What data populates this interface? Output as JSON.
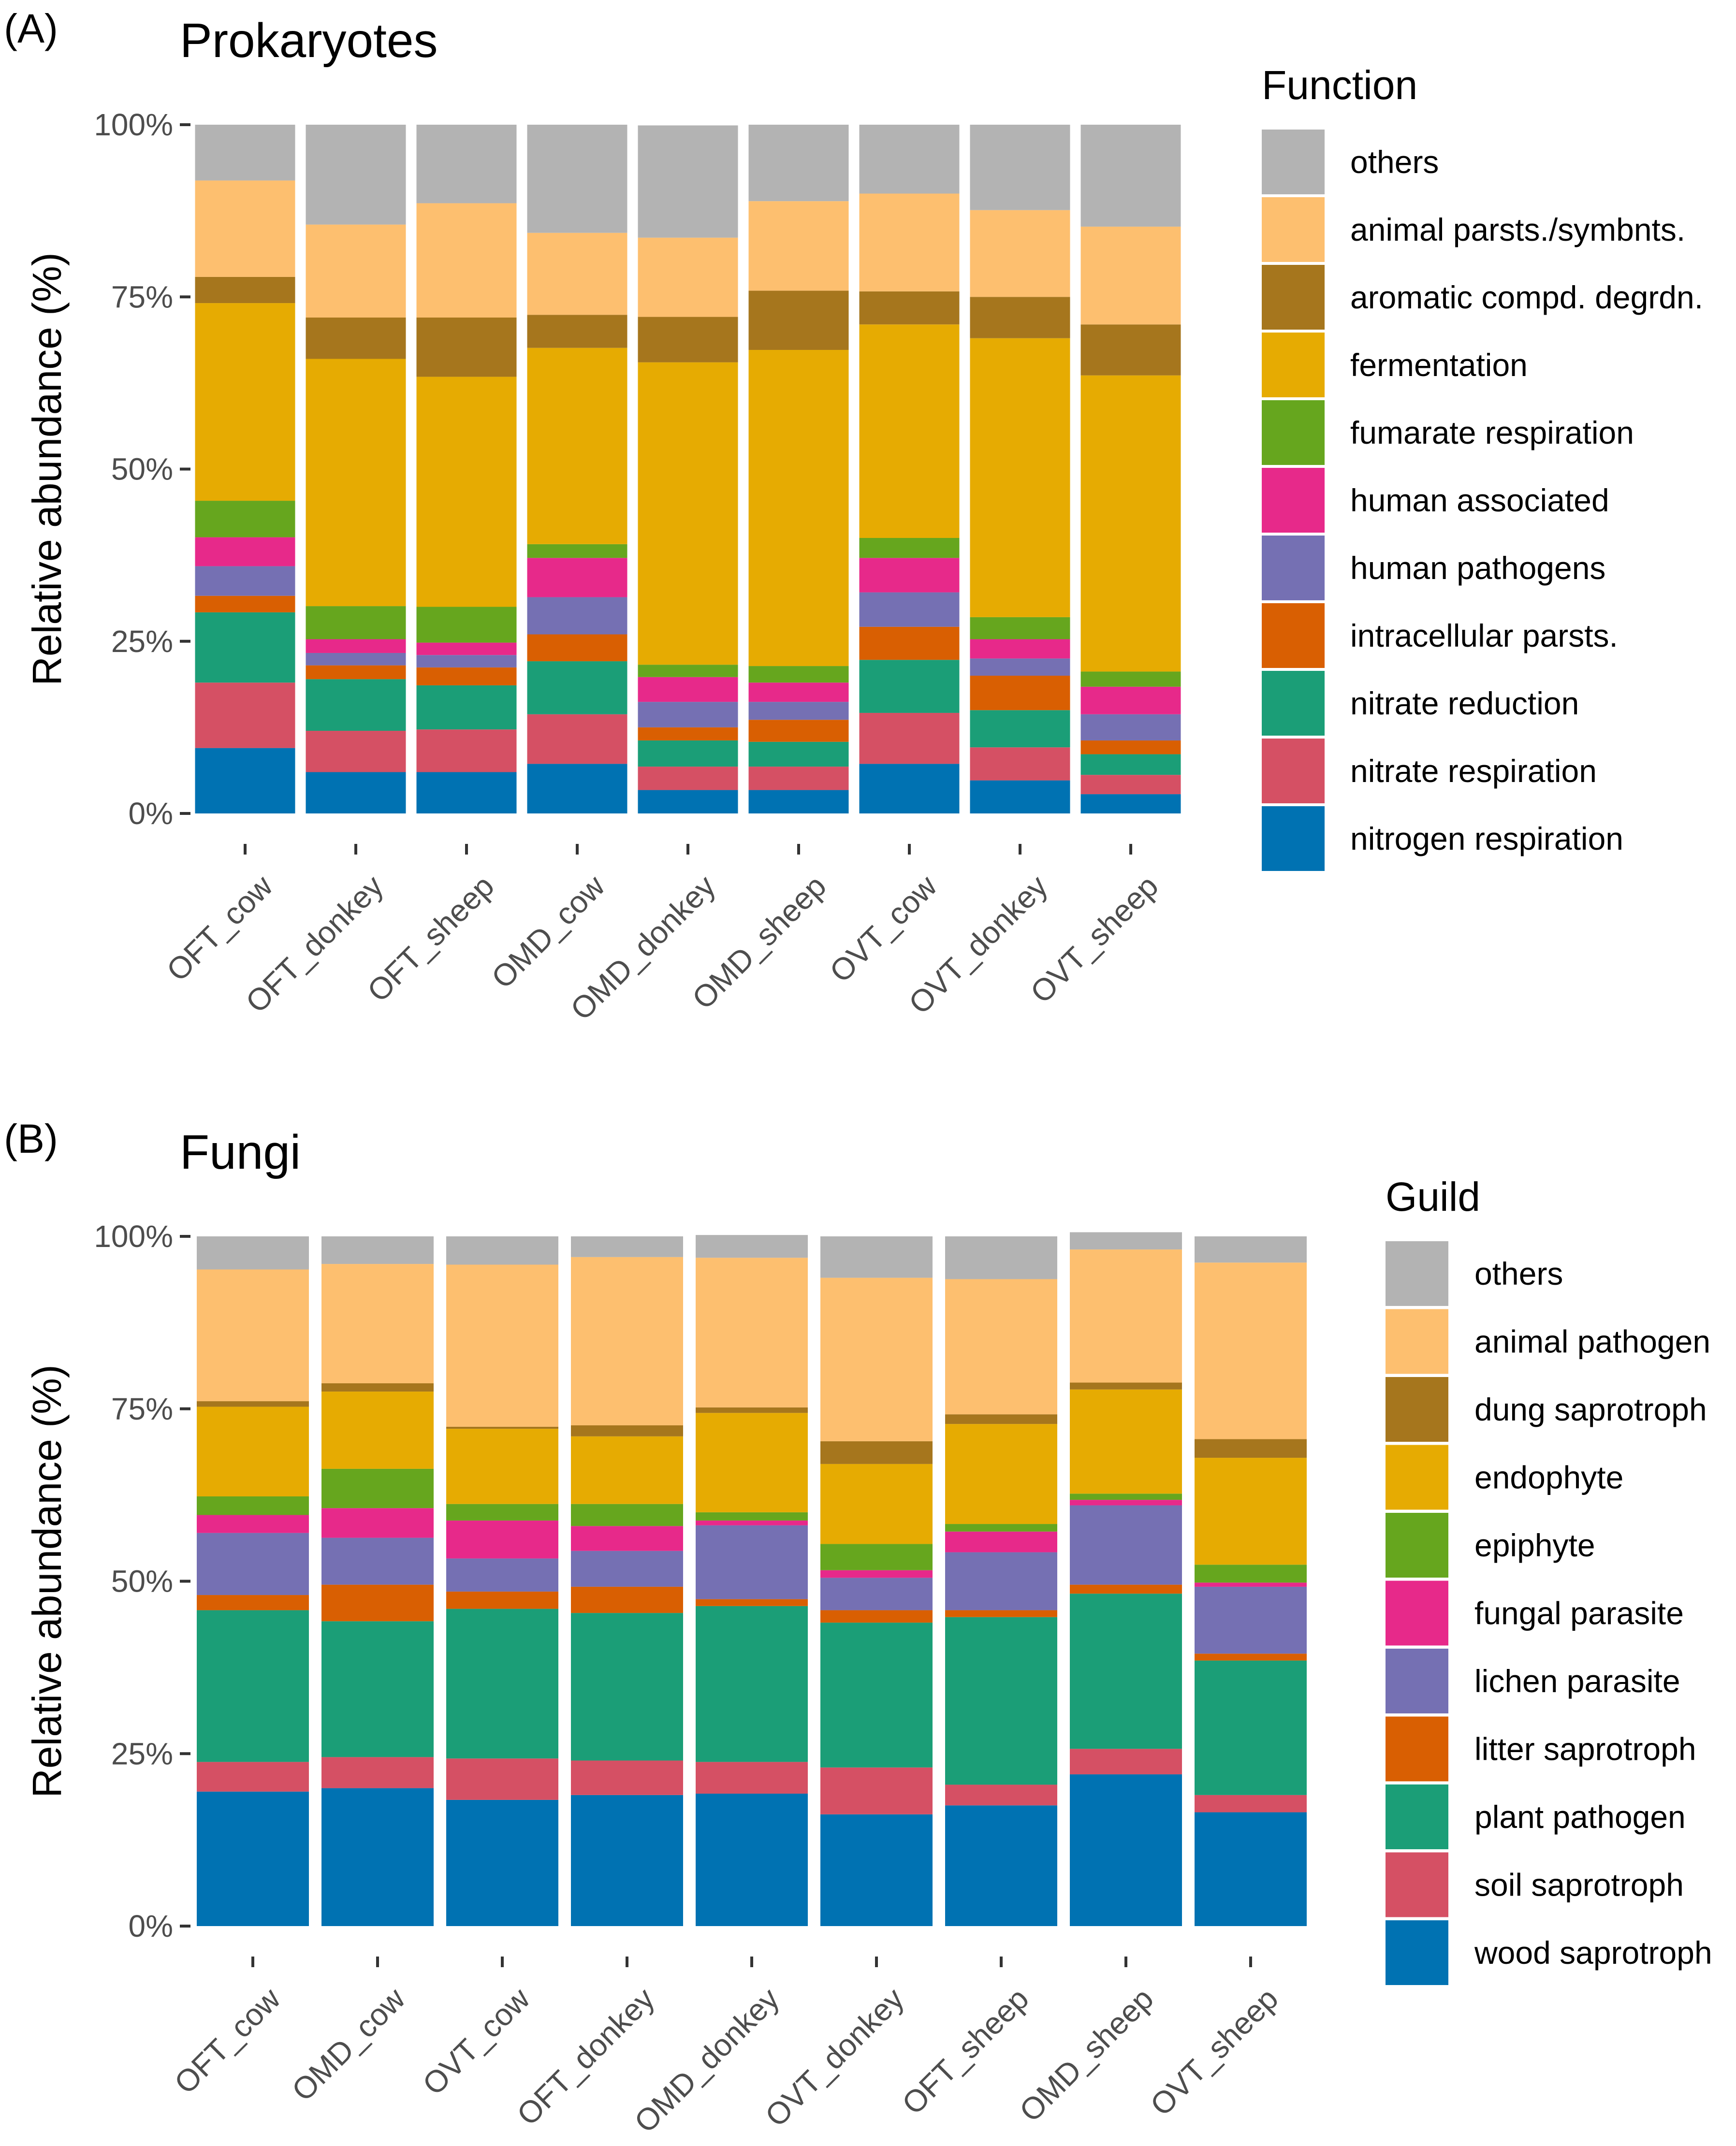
{
  "figure": {
    "ytick_labels": [
      "0%",
      "25%",
      "50%",
      "75%",
      "100%"
    ]
  },
  "chart_data": [
    {
      "type": "bar",
      "stacked": true,
      "panel_label": "(A)",
      "title": "Prokaryotes",
      "xlabel": "",
      "ylabel": "Relative abundance (%)",
      "ylim": [
        0,
        100
      ],
      "legend_title": "Function",
      "legend_position": "right",
      "categories": [
        "OFT_cow",
        "OFT_donkey",
        "OFT_sheep",
        "OMD_cow",
        "OMD_donkey",
        "OMD_sheep",
        "OVT_cow",
        "OVT_donkey",
        "OVT_sheep"
      ],
      "series": [
        {
          "name": "nitrogen respiration",
          "color": "#0072B2",
          "values": [
            9.5,
            6.0,
            6.0,
            7.2,
            3.4,
            3.4,
            7.2,
            4.8,
            2.8
          ]
        },
        {
          "name": "nitrate respiration",
          "color": "#D55064",
          "values": [
            9.5,
            6.0,
            6.2,
            7.2,
            3.4,
            3.4,
            7.4,
            4.8,
            2.8
          ]
        },
        {
          "name": "nitrate reduction",
          "color": "#1B9E77",
          "values": [
            10.2,
            7.5,
            6.4,
            7.7,
            3.8,
            3.6,
            7.7,
            5.4,
            3.0
          ]
        },
        {
          "name": "intracellular parsts.",
          "color": "#D95F02",
          "values": [
            2.4,
            2.0,
            2.6,
            3.9,
            1.9,
            3.2,
            4.8,
            5.0,
            2.0
          ]
        },
        {
          "name": "human pathogens",
          "color": "#7570B3",
          "values": [
            4.3,
            1.8,
            1.8,
            5.4,
            3.7,
            2.6,
            5.0,
            2.5,
            3.8
          ]
        },
        {
          "name": "human associated",
          "color": "#E7298A",
          "values": [
            4.2,
            2.0,
            1.8,
            5.7,
            3.6,
            2.8,
            5.0,
            2.8,
            4.0
          ]
        },
        {
          "name": "fumarate respiration",
          "color": "#66A61E",
          "values": [
            5.3,
            4.8,
            5.2,
            2.0,
            1.8,
            2.4,
            2.9,
            3.2,
            2.2
          ]
        },
        {
          "name": "fermentation",
          "color": "#E6AB02",
          "values": [
            28.7,
            35.9,
            33.4,
            28.5,
            43.9,
            45.9,
            31.0,
            40.5,
            43.0
          ]
        },
        {
          "name": "aromatic compd. degrdn.",
          "color": "#A6761D",
          "values": [
            3.8,
            6.0,
            8.6,
            4.8,
            6.6,
            8.6,
            4.8,
            6.0,
            7.4
          ]
        },
        {
          "name": "animal parsts./symbnts.",
          "color": "#FDBF6F",
          "values": [
            14.0,
            13.5,
            16.6,
            11.9,
            11.5,
            13.0,
            14.2,
            12.6,
            14.2
          ]
        },
        {
          "name": "others",
          "color": "#B3B3B3",
          "values": [
            8.1,
            14.5,
            11.4,
            15.7,
            16.3,
            11.1,
            10.0,
            12.4,
            14.8
          ]
        }
      ]
    },
    {
      "type": "bar",
      "stacked": true,
      "panel_label": "(B)",
      "title": "Fungi",
      "xlabel": "",
      "ylabel": "Relative abundance (%)",
      "ylim": [
        0,
        100
      ],
      "legend_title": "Guild",
      "legend_position": "right",
      "categories": [
        "OFT_cow",
        "OMD_cow",
        "OVT_cow",
        "OFT_donkey",
        "OMD_donkey",
        "OVT_donkey",
        "OFT_sheep",
        "OMD_sheep",
        "OVT_sheep"
      ],
      "series": [
        {
          "name": "wood saprotroph",
          "color": "#0072B2",
          "values": [
            19.5,
            20.0,
            18.3,
            19.0,
            19.2,
            16.2,
            17.5,
            22.0,
            16.5
          ]
        },
        {
          "name": "soil saprotroph",
          "color": "#D55064",
          "values": [
            4.3,
            4.5,
            6.0,
            5.0,
            4.6,
            6.8,
            3.0,
            3.7,
            2.5
          ]
        },
        {
          "name": "plant pathogen",
          "color": "#1B9E77",
          "values": [
            22.0,
            19.7,
            21.7,
            21.4,
            22.6,
            21.0,
            24.3,
            22.5,
            19.5
          ]
        },
        {
          "name": "litter saprotroph",
          "color": "#D95F02",
          "values": [
            2.2,
            5.3,
            2.5,
            3.8,
            1.0,
            1.8,
            1.0,
            1.3,
            1.0
          ]
        },
        {
          "name": "lichen parasite",
          "color": "#7570B3",
          "values": [
            9.0,
            6.8,
            4.8,
            5.2,
            10.7,
            4.7,
            8.4,
            11.5,
            9.7
          ]
        },
        {
          "name": "fungal parasite",
          "color": "#E7298A",
          "values": [
            2.6,
            4.3,
            5.5,
            3.6,
            0.7,
            1.1,
            3.0,
            0.8,
            0.6
          ]
        },
        {
          "name": "epiphyte",
          "color": "#66A61E",
          "values": [
            2.7,
            5.7,
            2.4,
            3.2,
            1.2,
            3.8,
            1.1,
            0.9,
            2.6
          ]
        },
        {
          "name": "endophyte",
          "color": "#E6AB02",
          "values": [
            13.0,
            11.2,
            10.9,
            9.8,
            14.4,
            11.6,
            14.5,
            15.1,
            15.5
          ]
        },
        {
          "name": "dung saprotroph",
          "color": "#A6761D",
          "values": [
            0.8,
            1.2,
            0.3,
            1.6,
            0.8,
            3.3,
            1.4,
            1.0,
            2.7
          ]
        },
        {
          "name": "animal pathogen",
          "color": "#FDBF6F",
          "values": [
            19.1,
            17.3,
            23.5,
            24.4,
            21.7,
            23.7,
            19.6,
            19.3,
            25.6
          ]
        },
        {
          "name": "others",
          "color": "#B3B3B3",
          "values": [
            4.8,
            4.0,
            4.1,
            3.0,
            3.3,
            6.0,
            6.2,
            2.5,
            3.8
          ]
        }
      ]
    }
  ]
}
